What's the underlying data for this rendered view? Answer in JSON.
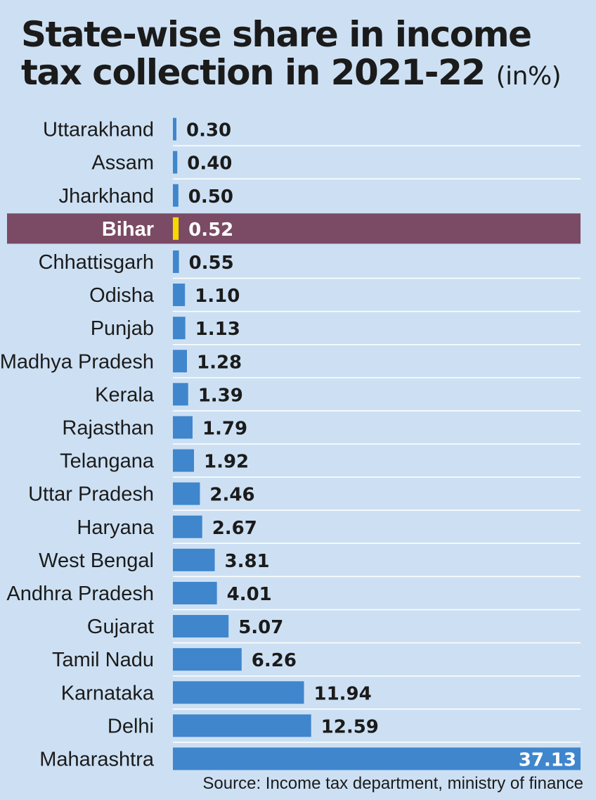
{
  "title_main": "State-wise share in income tax collection in 2021-22",
  "title_unit": "(in%)",
  "source": "Source: Income tax department, ministry of finance",
  "colors": {
    "background": "#cde0f3",
    "bar": "#3f86cc",
    "highlight_row": "#7b4a64",
    "highlight_bar": "#f5d800",
    "separator": "#ffffff"
  },
  "chart_data": {
    "type": "bar",
    "orientation": "horizontal",
    "title": "State-wise share in income tax collection in 2021-22 (in%)",
    "highlight": "Bihar",
    "xlim": [
      0,
      37.13
    ],
    "categories": [
      "Uttarakhand",
      "Assam",
      "Jharkhand",
      "Bihar",
      "Chhattisgarh",
      "Odisha",
      "Punjab",
      "Madhya Pradesh",
      "Kerala",
      "Rajasthan",
      "Telangana",
      "Uttar Pradesh",
      "Haryana",
      "West Bengal",
      "Andhra Pradesh",
      "Gujarat",
      "Tamil Nadu",
      "Karnataka",
      "Delhi",
      "Maharashtra"
    ],
    "values": [
      0.3,
      0.4,
      0.5,
      0.52,
      0.55,
      1.1,
      1.13,
      1.28,
      1.39,
      1.79,
      1.92,
      2.46,
      2.67,
      3.81,
      4.01,
      5.07,
      6.26,
      11.94,
      12.59,
      37.13
    ],
    "value_labels": [
      "0.30",
      "0.40",
      "0.50",
      "0.52",
      "0.55",
      "1.10",
      "1.13",
      "1.28",
      "1.39",
      "1.79",
      "1.92",
      "2.46",
      "2.67",
      "3.81",
      "4.01",
      "5.07",
      "6.26",
      "11.94",
      "12.59",
      "37.13"
    ]
  }
}
